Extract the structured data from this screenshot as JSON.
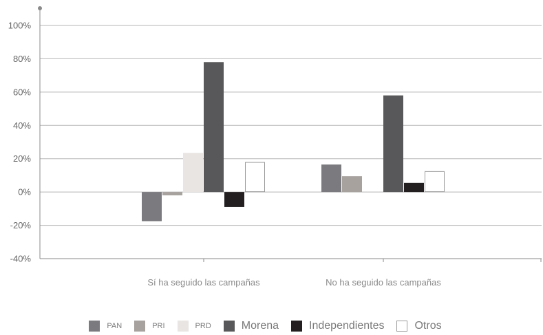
{
  "chart_data": {
    "type": "bar",
    "title": "",
    "xlabel": "",
    "ylabel": "",
    "categories": [
      "Sí ha seguido las campañas",
      "No ha seguido las campañas"
    ],
    "series": [
      {
        "name": "PAN",
        "values": [
          -17.5,
          16.5
        ],
        "color": "#7b7b7f",
        "border": "#7b7b7f"
      },
      {
        "name": "PRI",
        "values": [
          -2,
          9.5
        ],
        "color": "#a8a29f",
        "border": "#a8a29f"
      },
      {
        "name": "PRD",
        "values": [
          23.5,
          0
        ],
        "color": "#e8e5e2",
        "border": "#e8e5e2"
      },
      {
        "name": "Morena",
        "values": [
          78,
          58
        ],
        "color": "#58585a",
        "border": "#58585a"
      },
      {
        "name": "Independientes",
        "values": [
          -9,
          5.5
        ],
        "color": "#231f20",
        "border": "#231f20"
      },
      {
        "name": "Otros",
        "values": [
          18,
          12.5
        ],
        "color": "#ffffff",
        "border": "#9a9a9a"
      }
    ],
    "ylim": [
      -40,
      100
    ],
    "yticks": [
      -40,
      -20,
      0,
      20,
      40,
      60,
      80,
      100
    ],
    "ytick_labels": [
      "-40%",
      "-20%",
      "0%",
      "20%",
      "40%",
      "60%",
      "80%",
      "100%"
    ],
    "grid": true,
    "legend_position": "bottom"
  }
}
